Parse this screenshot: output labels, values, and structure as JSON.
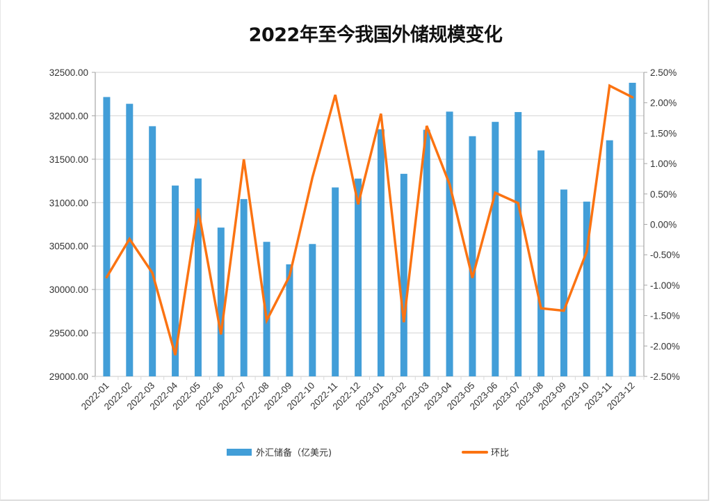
{
  "title": "2022年至今我国外储规模变化",
  "colors": {
    "bar": "#429ed8",
    "line": "#fb7312",
    "grid": "#d9d9d9",
    "axis": "#a6a6a6",
    "text": "#333333"
  },
  "legend": {
    "bar_label": "外汇储备（亿美元)",
    "line_label": "环比"
  },
  "left_axis_ticks": [
    "32500.00",
    "32000.00",
    "31500.00",
    "31000.00",
    "30500.00",
    "30000.00",
    "29500.00",
    "29000.00"
  ],
  "right_axis_ticks": [
    "2.50%",
    "2.00%",
    "1.50%",
    "1.00%",
    "0.50%",
    "0.00%",
    "-0.50%",
    "-1.00%",
    "-1.50%",
    "-2.00%",
    "-2.50%"
  ],
  "chart_data": {
    "type": "bar+line",
    "title": "2022年至今我国外储规模变化",
    "xlabel": "",
    "ylabel": "外汇储备（亿美元)",
    "y2label": "环比",
    "ylim": [
      29000,
      32500
    ],
    "y2lim": [
      -2.5,
      2.5
    ],
    "grid": true,
    "legend_position": "bottom",
    "categories": [
      "2022-01",
      "2022-02",
      "2022-03",
      "2022-04",
      "2022-05",
      "2022-06",
      "2022-07",
      "2022-08",
      "2022-09",
      "2022-10",
      "2022-11",
      "2022-12",
      "2023-01",
      "2023-02",
      "2023-03",
      "2023-04",
      "2023-05",
      "2023-06",
      "2023-07",
      "2023-08",
      "2023-09",
      "2023-10",
      "2023-11",
      "2023-12"
    ],
    "series": [
      {
        "name": "外汇储备（亿美元)",
        "type": "bar",
        "axis": "left",
        "values": [
          32216,
          32138,
          31880,
          31197,
          31278,
          30713,
          31041,
          30549,
          30290,
          30524,
          31175,
          31277,
          31845,
          31332,
          31839,
          32048,
          31765,
          31930,
          32043,
          31601,
          31151,
          31012,
          31718,
          32380
        ]
      },
      {
        "name": "环比",
        "type": "line",
        "axis": "right",
        "unit": "%",
        "values": [
          -0.87,
          -0.24,
          -0.8,
          -2.15,
          0.26,
          -1.81,
          1.07,
          -1.58,
          -0.85,
          0.77,
          2.13,
          0.33,
          1.82,
          -1.61,
          1.62,
          0.66,
          -0.88,
          0.52,
          0.35,
          -1.38,
          -1.42,
          -0.45,
          2.28,
          2.09
        ]
      }
    ]
  }
}
